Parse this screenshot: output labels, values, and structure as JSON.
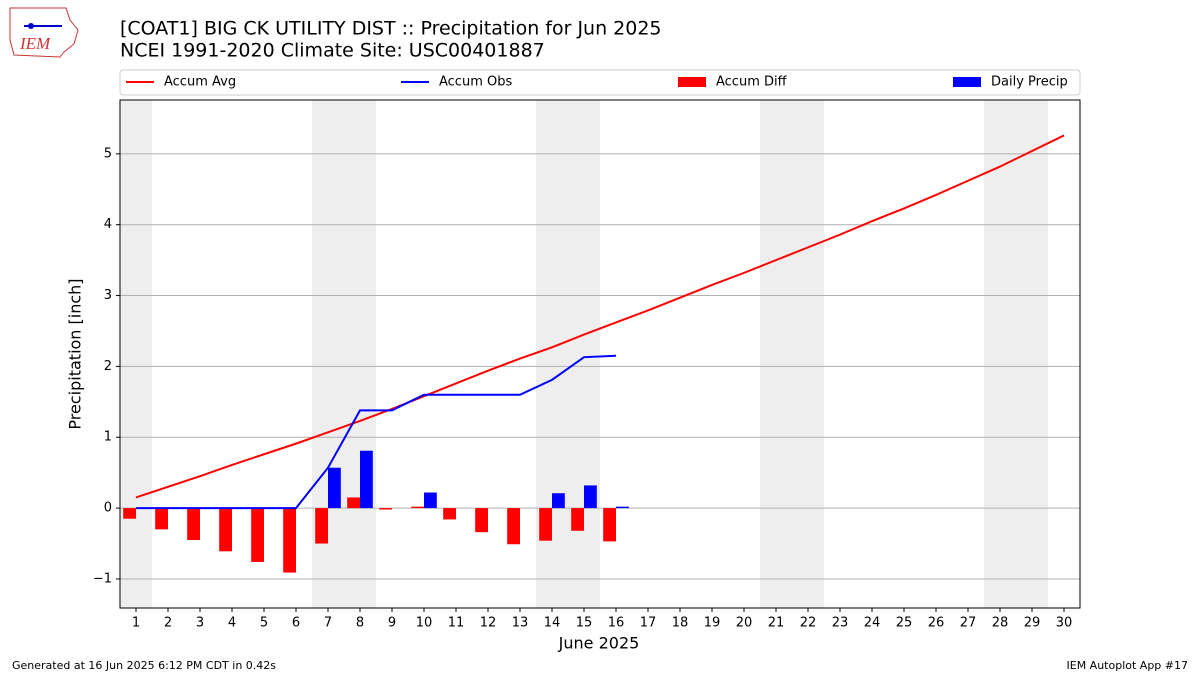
{
  "chart_data": {
    "type": "bar_line",
    "title": "[COAT1] BIG CK UTILITY DIST :: Precipitation for Jun 2025",
    "subtitle": "NCEI 1991-2020 Climate Site: USC00401887",
    "x_label": "June 2025",
    "y_label": "Precipitation [inch]",
    "footer_left": "Generated at 16 Jun 2025 6:12 PM CDT in 0.42s",
    "footer_right": "IEM Autoplot App #17",
    "logo_text": "IEM",
    "legend": "top-outside",
    "grid": true,
    "x": [
      1,
      2,
      3,
      4,
      5,
      6,
      7,
      8,
      9,
      10,
      11,
      12,
      13,
      14,
      15,
      16,
      17,
      18,
      19,
      20,
      21,
      22,
      23,
      24,
      25,
      26,
      27,
      28,
      29,
      30
    ],
    "xlim": [
      0.5,
      30.5
    ],
    "xticks": [
      1,
      2,
      3,
      4,
      5,
      6,
      7,
      8,
      9,
      10,
      11,
      12,
      13,
      14,
      15,
      16,
      17,
      18,
      19,
      20,
      21,
      22,
      23,
      24,
      25,
      26,
      27,
      28,
      29,
      30
    ],
    "ylim": [
      -1.41,
      5.76
    ],
    "yticks": [
      {
        "value": -1,
        "label": "−1"
      },
      0,
      1,
      2,
      3,
      4,
      5
    ],
    "shaded_ranges": [
      [
        0.5,
        1.5
      ],
      [
        6.5,
        8.5
      ],
      [
        13.5,
        15.5
      ],
      [
        20.5,
        22.5
      ],
      [
        27.5,
        29.5
      ]
    ],
    "series": [
      {
        "name": "Accum Avg",
        "color": "#ff0000",
        "type": "line",
        "values": [
          0.15,
          0.3,
          0.45,
          0.61,
          0.76,
          0.91,
          1.07,
          1.23,
          1.4,
          1.58,
          1.76,
          1.94,
          2.11,
          2.27,
          2.45,
          2.62,
          2.79,
          2.97,
          3.15,
          3.32,
          3.5,
          3.68,
          3.86,
          4.05,
          4.23,
          4.42,
          4.62,
          4.82,
          5.04,
          5.26
        ]
      },
      {
        "name": "Accum Obs",
        "color": "#0000ff",
        "type": "line",
        "values": [
          0,
          0,
          0,
          0,
          0,
          0,
          0.57,
          1.38,
          1.38,
          1.6,
          1.6,
          1.6,
          1.6,
          1.81,
          2.13,
          2.15,
          null,
          null,
          null,
          null,
          null,
          null,
          null,
          null,
          null,
          null,
          null,
          null,
          null,
          null
        ]
      },
      {
        "name": "Accum Diff",
        "color": "#ff0000",
        "type": "bar",
        "values": [
          -0.15,
          -0.3,
          -0.45,
          -0.61,
          -0.76,
          -0.91,
          -0.5,
          0.15,
          -0.02,
          0.02,
          -0.16,
          -0.34,
          -0.51,
          -0.46,
          -0.32,
          -0.47,
          null,
          null,
          null,
          null,
          null,
          null,
          null,
          null,
          null,
          null,
          null,
          null,
          null,
          null
        ]
      },
      {
        "name": "Daily Precip",
        "color": "#0000ff",
        "type": "bar",
        "values": [
          0,
          0,
          0,
          0,
          0,
          0,
          0.57,
          0.81,
          0,
          0.22,
          0,
          0,
          0,
          0.21,
          0.32,
          0.02,
          null,
          null,
          null,
          null,
          null,
          null,
          null,
          null,
          null,
          null,
          null,
          null,
          null,
          null
        ]
      }
    ]
  }
}
